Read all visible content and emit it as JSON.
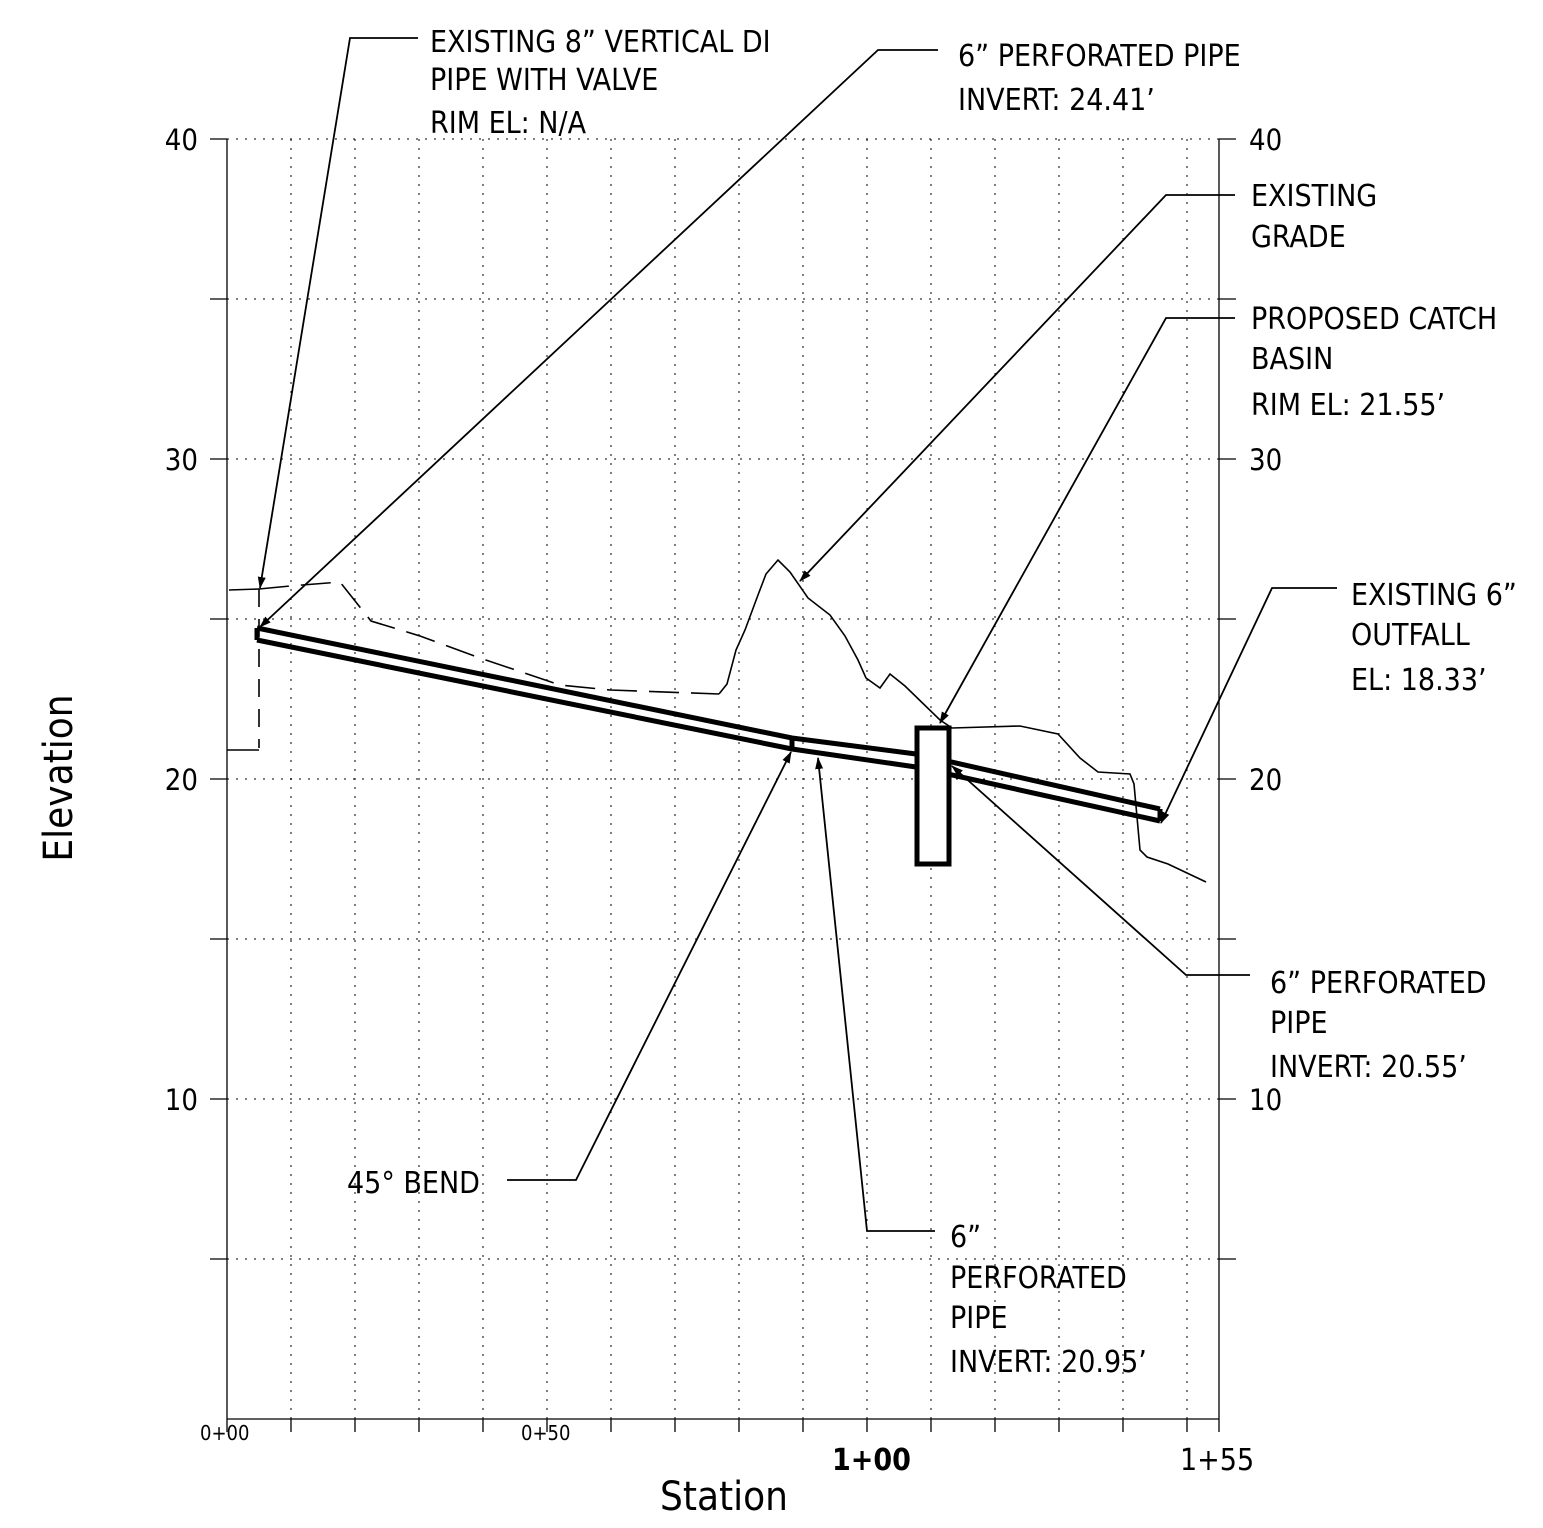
{
  "axes": {
    "x_title": "Station",
    "y_title": "Elevation",
    "y_ticks_left": [
      "40",
      "30",
      "20",
      "10"
    ],
    "y_ticks_right": [
      "40",
      "30",
      "20",
      "10"
    ],
    "station_ticks": [
      "0+00",
      "0+50",
      "1+00",
      "1+55"
    ]
  },
  "callouts": {
    "vertical_di_pipe": [
      "EXISTING 8” VERTICAL DI",
      "PIPE WITH VALVE",
      "RIM EL:  N/A"
    ],
    "perforated_pipe_top": [
      "6” PERFORATED PIPE",
      "INVERT: 24.41’"
    ],
    "existing_grade": [
      "EXISTING",
      "GRADE"
    ],
    "catch_basin": [
      "PROPOSED CATCH",
      "BASIN",
      "RIM EL: 21.55’"
    ],
    "outfall": [
      "EXISTING 6”",
      "OUTFALL",
      "EL: 18.33’"
    ],
    "perforated_pipe_right": [
      "6” PERFORATED",
      "PIPE",
      "INVERT: 20.55’"
    ],
    "bend": "45° BEND",
    "perforated_pipe_bottom": [
      "6”",
      "PERFORATED",
      "PIPE",
      "INVERT: 20.95’"
    ]
  }
}
